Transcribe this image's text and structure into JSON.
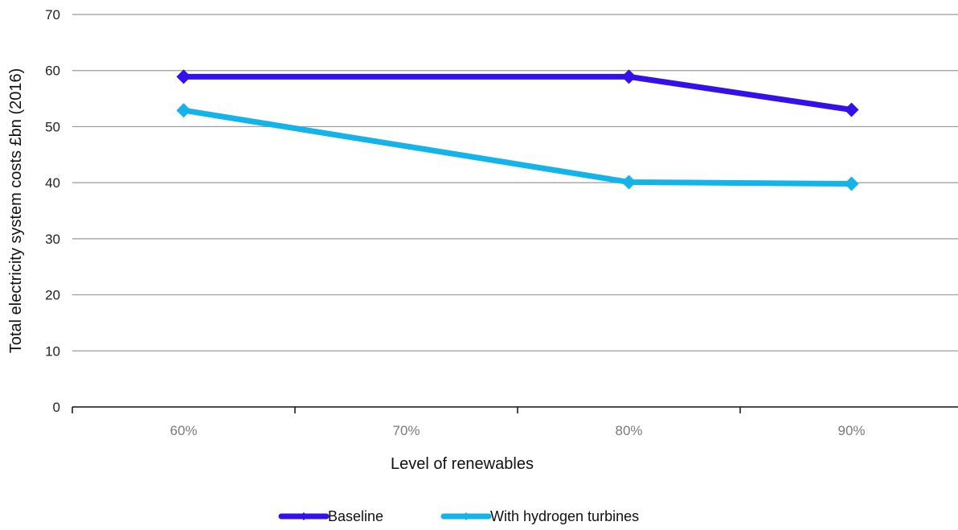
{
  "chart_data": {
    "type": "line",
    "categories": [
      "60%",
      "70%",
      "80%",
      "90%"
    ],
    "series": [
      {
        "name": "Baseline",
        "values": [
          58.9,
          58.9,
          58.9,
          53.0
        ],
        "markers": [
          true,
          false,
          true,
          true
        ],
        "color": "#3411e8"
      },
      {
        "name": "With hydrogen turbines",
        "values": [
          52.9,
          46.5,
          40.1,
          39.8
        ],
        "markers": [
          true,
          false,
          true,
          true
        ],
        "color": "#14b3ea"
      }
    ],
    "xlabel": "Level of renewables",
    "ylabel": "Total electricity system costs £bn (2016)",
    "ylim": [
      0,
      70
    ],
    "yticks": [
      "0",
      "10",
      "20",
      "30",
      "40",
      "50",
      "60",
      "70"
    ],
    "grid": true,
    "legend_position": "bottom"
  }
}
